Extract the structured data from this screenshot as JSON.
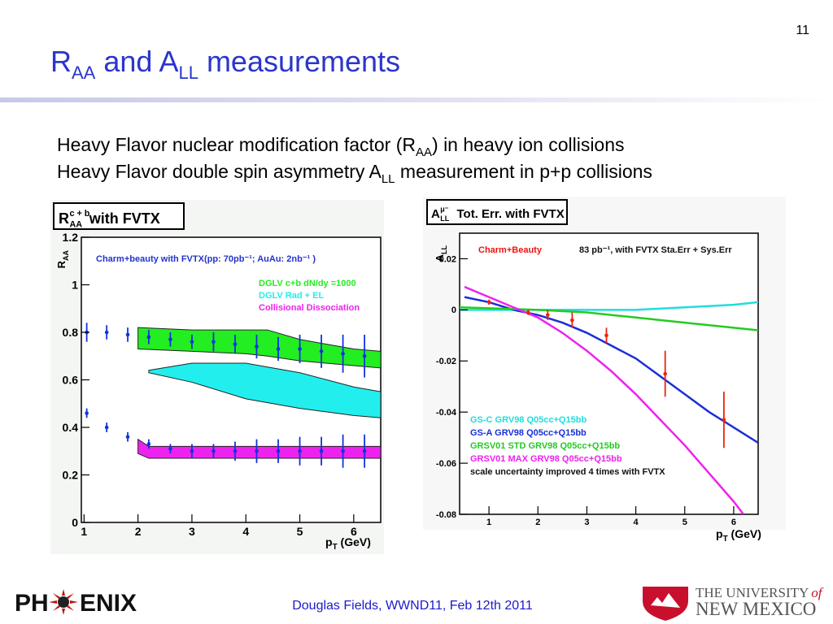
{
  "slide": {
    "page_number": "11",
    "title": [
      "R",
      "AA",
      " and A",
      "LL",
      " measurements"
    ],
    "bullets": [
      [
        "Heavy Flavor nuclear modification factor (R",
        "AA",
        ") in heavy ion collisions"
      ],
      [
        "Heavy Flavor double spin asymmetry A",
        "LL",
        " measurement in p+p collisions"
      ]
    ],
    "footer": "Douglas Fields, WWND11, Feb 12th 2011",
    "logo_left": [
      "PH",
      "ENIX"
    ],
    "logo_right": [
      "THE UNIVERSITY",
      "of",
      "NEW MEXICO"
    ]
  },
  "chart_data": [
    {
      "type": "band",
      "label": [
        "R",
        "c + b",
        "AA",
        " with FVTX"
      ],
      "ylabel": [
        "R",
        "AA"
      ],
      "xlabel": [
        "p",
        "T",
        " (GeV)"
      ],
      "annotations": [
        {
          "text": "Charm+beauty with FVTX(pp: 70pb⁻¹; AuAu: 2nb⁻¹ )",
          "color": "#2233cc"
        }
      ],
      "xlim": [
        0.95,
        6.5
      ],
      "ylim": [
        0,
        1.2
      ],
      "xticks": [
        1,
        2,
        3,
        4,
        5,
        6
      ],
      "yticks": [
        0,
        0.2,
        0.4,
        0.6,
        0.8,
        1,
        1.2
      ],
      "series": [
        {
          "name": "DGLV c+b dN/dy =1000",
          "color": "#22ee22",
          "x": [
            2,
            3,
            4,
            4.4,
            5,
            6,
            6.5
          ],
          "high": [
            0.82,
            0.81,
            0.81,
            0.81,
            0.77,
            0.73,
            0.72
          ],
          "low": [
            0.73,
            0.72,
            0.71,
            0.7,
            0.68,
            0.66,
            0.65
          ]
        },
        {
          "name": "DGLV Rad + EL",
          "color": "#22eeee",
          "x": [
            2.2,
            3,
            4,
            5,
            6,
            6.5
          ],
          "high": [
            0.64,
            0.67,
            0.67,
            0.63,
            0.57,
            0.55
          ],
          "low": [
            0.63,
            0.59,
            0.52,
            0.48,
            0.45,
            0.44
          ]
        },
        {
          "name": "Collisional Dissociation",
          "color": "#ee22ee",
          "x": [
            2,
            2.2,
            3,
            4,
            5,
            6,
            6.5
          ],
          "high": [
            0.35,
            0.32,
            0.32,
            0.32,
            0.32,
            0.32,
            0.32
          ],
          "low": [
            0.29,
            0.27,
            0.27,
            0.27,
            0.27,
            0.27,
            0.27
          ]
        }
      ],
      "points": [
        {
          "color": "#1133dd",
          "x": [
            1.05,
            1.42,
            1.81,
            2.2,
            2.6,
            3.0,
            3.4,
            3.8,
            4.2,
            4.6,
            5.0,
            5.4,
            5.8,
            6.2
          ],
          "values": [
            0.8,
            0.8,
            0.79,
            0.78,
            0.77,
            0.76,
            0.76,
            0.75,
            0.74,
            0.73,
            0.73,
            0.72,
            0.71,
            0.7
          ],
          "errors": [
            0.04,
            0.03,
            0.03,
            0.03,
            0.03,
            0.03,
            0.04,
            0.04,
            0.05,
            0.05,
            0.06,
            0.07,
            0.08,
            0.09
          ]
        },
        {
          "color": "#1133dd",
          "x": [
            1.05,
            1.42,
            1.81,
            2.2,
            2.6,
            3.0,
            3.4,
            3.8,
            4.2,
            4.6,
            5.0,
            5.4,
            5.8,
            6.2
          ],
          "values": [
            0.46,
            0.4,
            0.36,
            0.33,
            0.31,
            0.3,
            0.3,
            0.3,
            0.3,
            0.3,
            0.3,
            0.3,
            0.3,
            0.3
          ],
          "errors": [
            0.02,
            0.02,
            0.02,
            0.02,
            0.02,
            0.03,
            0.03,
            0.04,
            0.05,
            0.05,
            0.06,
            0.06,
            0.07,
            0.07
          ]
        }
      ]
    },
    {
      "type": "line",
      "label": [
        "A",
        "μ⁻",
        "LL",
        " Tot. Err. with FVTX"
      ],
      "ylabel": [
        "A",
        "LL"
      ],
      "xlabel": [
        "p",
        "T",
        " (GeV)"
      ],
      "annotations": [
        {
          "text": "Charm+Beauty",
          "color": "#ee1111"
        },
        {
          "text": "83 pb⁻¹, with FVTX Sta.Err + Sys.Err",
          "color": "#111111"
        }
      ],
      "note": "scale uncertainty improved 4 times with FVTX",
      "xlim": [
        0.4,
        6.5
      ],
      "ylim": [
        -0.08,
        0.03
      ],
      "xticks": [
        1,
        2,
        3,
        4,
        5,
        6
      ],
      "yticks": [
        0.02,
        0,
        -0.02,
        -0.04,
        -0.06,
        -0.08
      ],
      "series": [
        {
          "name": "GS-C GRV98 Q05cc+Q15bb",
          "color": "#22dddd",
          "x": [
            0.4,
            2,
            3,
            4,
            5,
            6,
            6.5
          ],
          "values": [
            0,
            0,
            0,
            0,
            0.001,
            0.002,
            0.003
          ]
        },
        {
          "name": "GS-A GRV98 Q05cc+Q15bb",
          "color": "#1a2fd6",
          "x": [
            0.5,
            1,
            1.5,
            2,
            2.5,
            3,
            3.5,
            4,
            4.5,
            5,
            5.5,
            6,
            6.5
          ],
          "values": [
            0.005,
            0.003,
            0,
            -0.002,
            -0.005,
            -0.009,
            -0.014,
            -0.019,
            -0.026,
            -0.033,
            -0.04,
            -0.046,
            -0.052
          ]
        },
        {
          "name": "GRSV01 STD GRV98 Q05cc+Q15bb",
          "color": "#22cc22",
          "x": [
            0.4,
            2,
            3,
            4,
            5,
            6,
            6.5
          ],
          "values": [
            0.001,
            0,
            -0.001,
            -0.003,
            -0.005,
            -0.007,
            -0.008
          ]
        },
        {
          "name": "GRSV01 MAX GRV98 Q05cc+Q15bb",
          "color": "#ee22ee",
          "x": [
            0.5,
            1,
            1.5,
            2,
            2.5,
            3,
            3.5,
            4,
            4.5,
            5,
            5.5,
            6,
            6.2
          ],
          "values": [
            0.009,
            0.005,
            0.001,
            -0.003,
            -0.009,
            -0.016,
            -0.024,
            -0.033,
            -0.043,
            -0.053,
            -0.064,
            -0.075,
            -0.08
          ]
        }
      ],
      "points": [
        {
          "color": "#ee2211",
          "x": [
            1.0,
            1.8,
            2.2,
            2.7,
            3.4,
            4.6,
            5.8
          ],
          "values": [
            0.003,
            -0.001,
            -0.002,
            -0.004,
            -0.01,
            -0.025,
            -0.043
          ],
          "errors": [
            0.001,
            0.001,
            0.002,
            0.003,
            0.003,
            0.009,
            0.011
          ]
        }
      ]
    }
  ]
}
